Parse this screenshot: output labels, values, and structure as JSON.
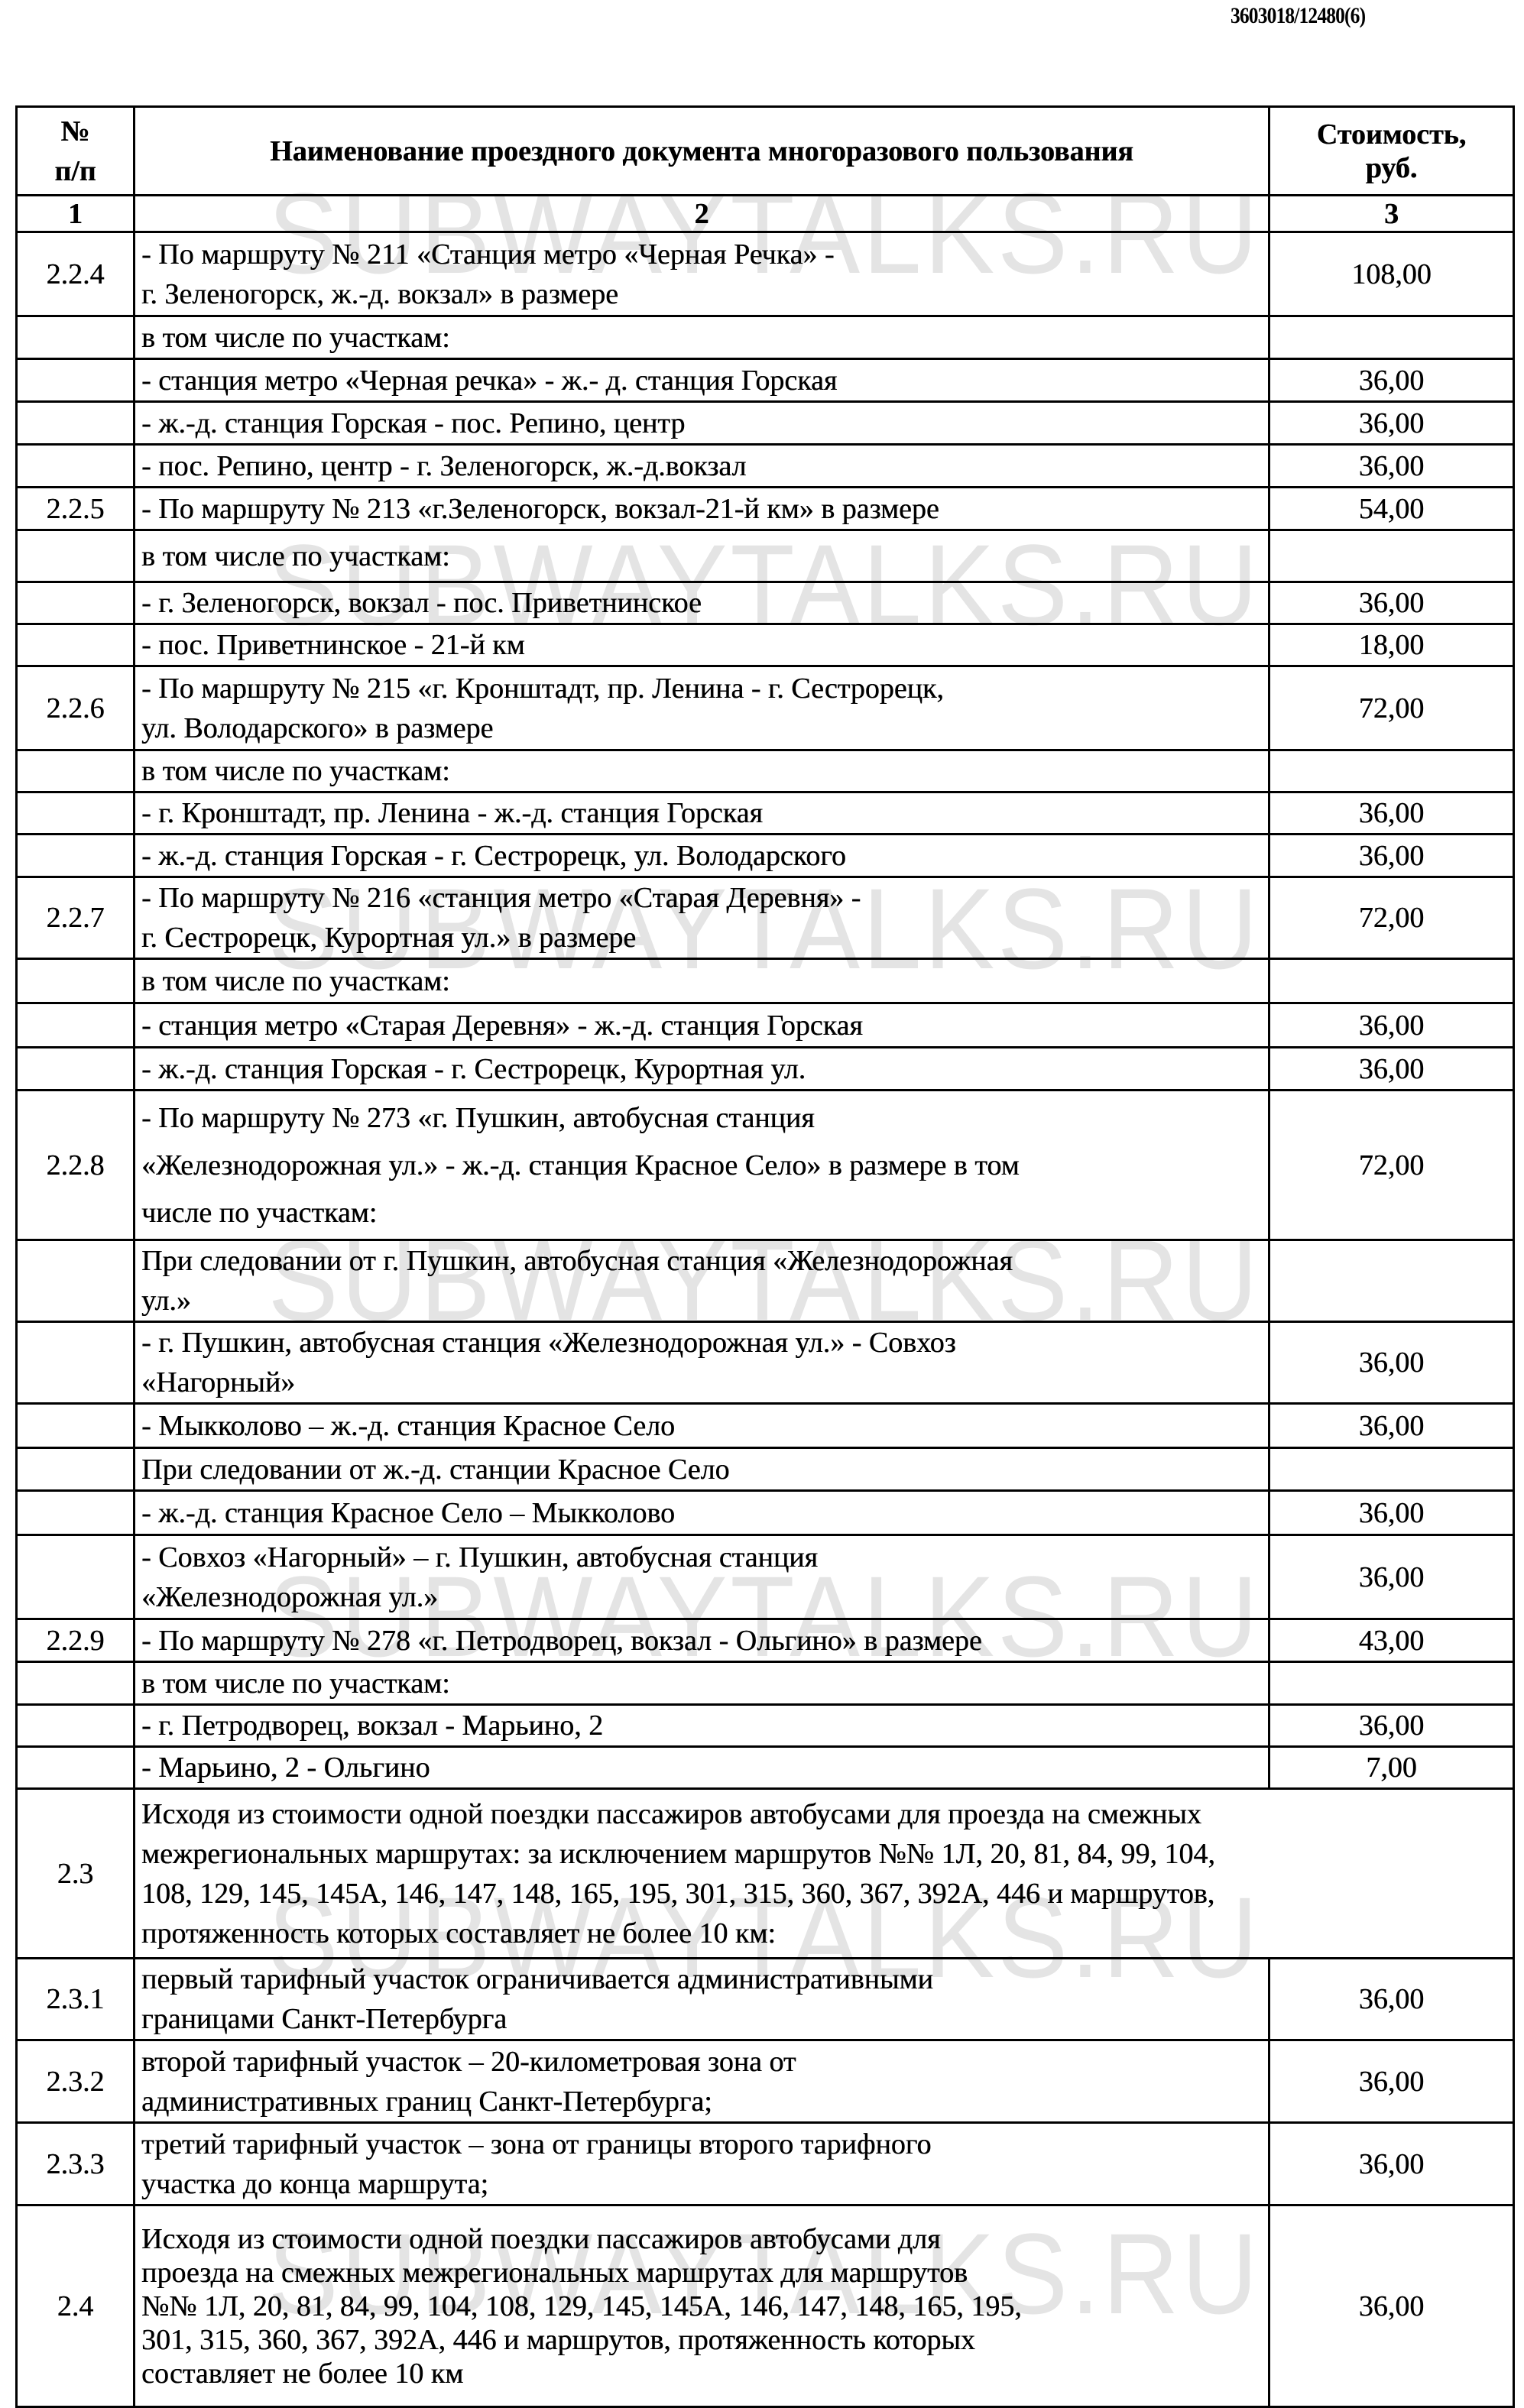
{
  "doc_number": "3603018/12480(6)",
  "watermark": "SUBWAYTALKS.RU",
  "table": {
    "headers": [
      "№\nп/п",
      "Наименование проездного документа многоразового пользования",
      "Стоимость,\nруб."
    ],
    "column_numbers": [
      "1",
      "2",
      "3"
    ],
    "rows": [
      {
        "num": "2.2.4",
        "text": "- По маршруту № 211 «Станция метро «Черная Речка» -\nг. Зеленогорск, ж.-д. вокзал» в размере",
        "price": "108,00"
      },
      {
        "num": "",
        "text": "в том числе по участкам:",
        "price": ""
      },
      {
        "num": "",
        "text": "- станция метро «Черная речка» - ж.- д. станция  Горская",
        "price": "36,00"
      },
      {
        "num": "",
        "text": "- ж.-д. станция Горская - пос. Репино, центр",
        "price": "36,00"
      },
      {
        "num": "",
        "text": "- пос. Репино, центр -  г.  Зеленогорск,  ж.-д.вокзал",
        "price": "36,00"
      },
      {
        "num": "2.2.5",
        "text": "- По маршруту № 213 «г.Зеленогорск, вокзал-21-й км» в размере",
        "price": "54,00"
      },
      {
        "num": "",
        "text": "в  том числе по участкам:",
        "price": ""
      },
      {
        "num": "",
        "text": "- г. Зеленогорск, вокзал - пос. Приветнинское",
        "price": "36,00"
      },
      {
        "num": "",
        "text": "- пос. Приветнинское - 21-й км",
        "price": "18,00"
      },
      {
        "num": "2.2.6",
        "text": "- По маршруту № 215 «г. Кронштадт, пр. Ленина - г. Сестрорецк,\nул. Володарского» в размере",
        "price": "72,00"
      },
      {
        "num": "",
        "text": "в том числе по участкам:",
        "price": ""
      },
      {
        "num": "",
        "text": "- г. Кронштадт,  пр.  Ленина  - ж.-д.  станция Горская",
        "price": "36,00"
      },
      {
        "num": "",
        "text": "- ж.-д. станция Горская - г. Сестрорецк,  ул. Володарского",
        "price": "36,00"
      },
      {
        "num": "2.2.7",
        "text": "- По маршруту № 216 «станция метро «Старая Деревня» -\nг. Сестрорецк, Курортная ул.» в размере",
        "price": "72,00"
      },
      {
        "num": "",
        "text": "в том числе по участкам:",
        "price": ""
      },
      {
        "num": "",
        "text": "- станция  метро  «Старая  Деревня» - ж.-д. станция  Горская",
        "price": "36,00"
      },
      {
        "num": "",
        "text": "- ж.-д.  станция  Горская  -   г.   Сестрорецк, Курортная ул.",
        "price": "36,00"
      },
      {
        "num": "2.2.8",
        "text": "- По маршруту № 273 «г. Пушкин, автобусная станция\n«Железнодорожная ул.» - ж.-д. станция Красное Село» в размере в том\nчисле по участкам:",
        "price": "72,00"
      },
      {
        "num": "",
        "text": "При следовании от г. Пушкин, автобусная станция «Железнодорожная\nул.»",
        "price": ""
      },
      {
        "num": "",
        "text": "- г. Пушкин, автобусная станция «Железнодорожная ул.» - Совхоз\n«Нагорный»",
        "price": "36,00"
      },
      {
        "num": "",
        "text": "- Мыкколово – ж.-д. станция Красное Село",
        "price": "36,00"
      },
      {
        "num": "",
        "text": "При следовании от ж.-д. станции Красное Село",
        "price": ""
      },
      {
        "num": "",
        "text": "- ж.-д. станция Красное Село – Мыкколово",
        "price": "36,00"
      },
      {
        "num": "",
        "text": "- Совхоз «Нагорный» – г. Пушкин, автобусная станция\n«Железнодорожная ул.»",
        "price": "36,00"
      },
      {
        "num": "2.2.9",
        "text": "- По маршруту № 278 «г. Петродворец,  вокзал  - Ольгино» в размере",
        "price": "43,00"
      },
      {
        "num": "",
        "text": "в том числе по участкам:",
        "price": ""
      },
      {
        "num": "",
        "text": "- г. Петродворец, вокзал - Марьино, 2",
        "price": "36,00"
      },
      {
        "num": "",
        "text": "- Марьино, 2 - Ольгино",
        "price": "7,00"
      },
      {
        "num": "2.3",
        "text": "Исходя из стоимости одной поездки пассажиров автобусами  для проезда на смежных\nмежрегиональных маршрутах: за исключением маршрутов №№ 1Л, 20, 81, 84, 99, 104,\n108, 129, 145, 145А, 146, 147, 148, 165, 195, 301, 315, 360, 367, 392А, 446 и маршрутов,\nпротяженность которых составляет не более 10 км:",
        "price": "",
        "span": true
      },
      {
        "num": "2.3.1",
        "text": "первый тарифный участок ограничивается административными\nграницами Санкт-Петербурга",
        "price": "36,00"
      },
      {
        "num": "2.3.2",
        "text": "второй тарифный участок – 20-километровая зона от\nадминистративных границ Санкт-Петербурга;",
        "price": "36,00"
      },
      {
        "num": "2.3.3",
        "text": "третий тарифный участок – зона от границы второго тарифного\nучастка до конца маршрута;",
        "price": "36,00"
      },
      {
        "num": "2.4",
        "text": "Исходя из стоимости одной поездки пассажиров автобусами  для\nпроезда на смежных межрегиональных маршрутах для маршрутов\n№№ 1Л, 20, 81, 84, 99, 104, 108, 129, 145, 145А, 146, 147, 148, 165, 195,\n301, 315, 360, 367, 392А, 446 и маршрутов, протяженность которых\nсоставляет не более 10 км",
        "price": "36,00"
      }
    ]
  }
}
